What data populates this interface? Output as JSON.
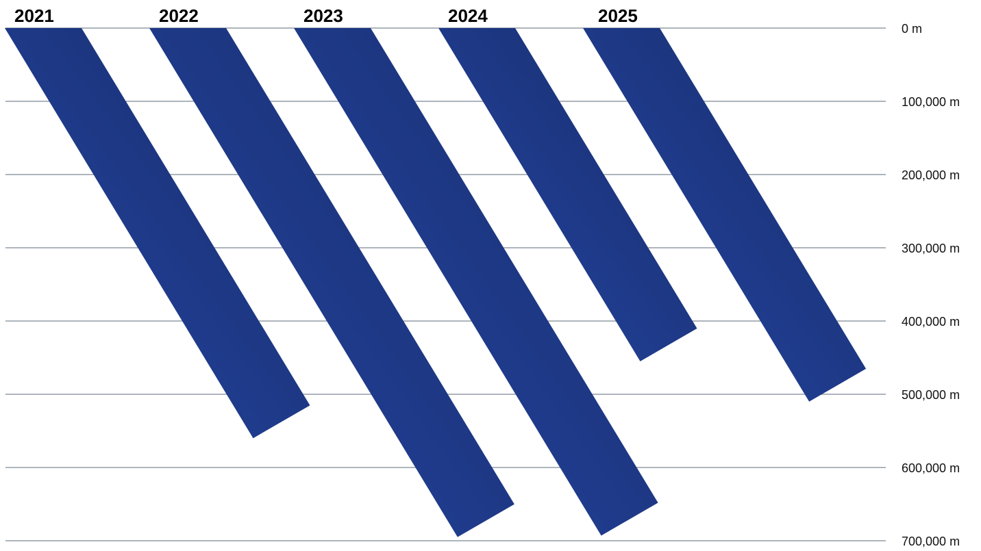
{
  "chart_data": {
    "type": "bar",
    "orientation": "vertical-downward-slanted",
    "categories": [
      "2021",
      "2022",
      "2023",
      "2024",
      "2025"
    ],
    "values": [
      560000,
      695000,
      693000,
      455000,
      510000
    ],
    "unit": "m",
    "ylim": [
      0,
      700000
    ],
    "yticks": [
      "0 m",
      "100,000 m",
      "200,000 m",
      "300,000 m",
      "400,000 m",
      "500,000 m",
      "600,000 m",
      "700,000 m"
    ],
    "grid": true,
    "legend": "none",
    "colors": {
      "bar_light": "#2546a4",
      "bar_dark": "#172c6a",
      "grid": "#5b6a78"
    }
  }
}
